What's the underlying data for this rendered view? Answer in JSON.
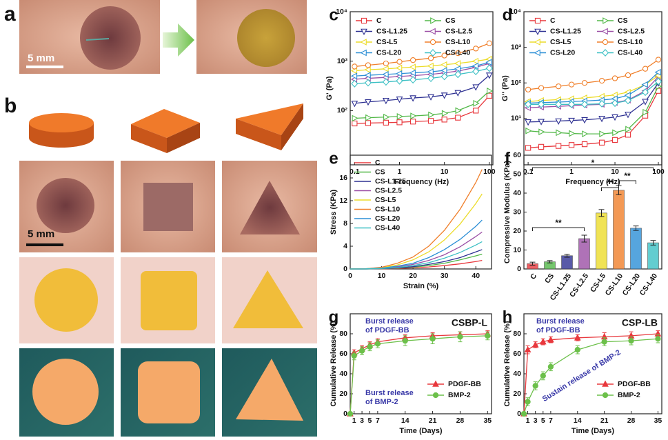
{
  "panel_a": {
    "label": "a",
    "scale_bar": "5 mm"
  },
  "panel_b": {
    "label": "b",
    "scale_bar": "5 mm"
  },
  "chart_data": [
    {
      "type": "line",
      "panel": "c",
      "x_label": "Frequency (Hz)",
      "y_label": "G' (Pa)",
      "xscale": "log",
      "yscale": "log",
      "xlim": [
        0.08,
        120
      ],
      "ylim": [
        8,
        10000
      ],
      "xticks": [
        0.1,
        1,
        10,
        100
      ],
      "yticks": [
        {
          "value": 100,
          "label": "10²"
        },
        {
          "value": 1000,
          "label": "10³"
        },
        {
          "value": 10000,
          "label": "10⁴"
        }
      ],
      "legend": "upper left",
      "markers_filled": false,
      "x": [
        0.1,
        0.2,
        0.5,
        1,
        2,
        5,
        10,
        20,
        50,
        100
      ],
      "series": [
        {
          "name": "C",
          "color": "#e8383d",
          "marker": "square",
          "values": [
            55,
            56,
            57,
            58,
            60,
            62,
            66,
            72,
            100,
            200
          ]
        },
        {
          "name": "CS",
          "color": "#52b848",
          "marker": "triangle-right",
          "values": [
            70,
            72,
            74,
            76,
            78,
            82,
            88,
            100,
            140,
            250
          ]
        },
        {
          "name": "CS-L1.25",
          "color": "#2e3192",
          "marker": "triangle-down",
          "values": [
            140,
            150,
            160,
            170,
            180,
            190,
            205,
            230,
            300,
            520
          ]
        },
        {
          "name": "CS-L2.5",
          "color": "#9b4fa5",
          "marker": "triangle-left",
          "values": [
            430,
            450,
            470,
            490,
            510,
            540,
            580,
            630,
            750,
            900
          ]
        },
        {
          "name": "CS-L5",
          "color": "#ecdc2a",
          "marker": "triangle-left",
          "values": [
            640,
            670,
            700,
            730,
            760,
            800,
            850,
            900,
            1000,
            1100
          ]
        },
        {
          "name": "CS-L10",
          "color": "#f07f2a",
          "marker": "circle",
          "values": [
            780,
            830,
            900,
            970,
            1050,
            1150,
            1300,
            1450,
            1800,
            2300
          ]
        },
        {
          "name": "CS-L20",
          "color": "#2c8fd6",
          "marker": "triangle-left",
          "values": [
            500,
            520,
            540,
            560,
            580,
            610,
            650,
            700,
            800,
            950
          ]
        },
        {
          "name": "CS-L40",
          "color": "#3cc0c4",
          "marker": "diamond",
          "values": [
            350,
            365,
            380,
            400,
            420,
            450,
            490,
            540,
            620,
            720
          ]
        }
      ]
    },
    {
      "type": "line",
      "panel": "d",
      "x_label": "Frequency (Hz)",
      "y_label": "G'' (Pa)",
      "xscale": "log",
      "yscale": "log",
      "xlim": [
        0.08,
        120
      ],
      "ylim": [
        0.5,
        10000
      ],
      "xticks": [
        0.1,
        1,
        10,
        100
      ],
      "yticks": [
        {
          "value": 10,
          "label": "10¹"
        },
        {
          "value": 100,
          "label": "10²"
        },
        {
          "value": 1000,
          "label": "10³"
        },
        {
          "value": 10000,
          "label": "10⁴"
        }
      ],
      "legend": "upper left",
      "markers_filled": false,
      "x": [
        0.1,
        0.2,
        0.5,
        1,
        2,
        5,
        10,
        20,
        50,
        100
      ],
      "series": [
        {
          "name": "C",
          "color": "#e8383d",
          "marker": "square",
          "values": [
            1.5,
            1.6,
            1.7,
            1.8,
            1.9,
            2.1,
            2.5,
            3.5,
            12,
            60
          ]
        },
        {
          "name": "CS",
          "color": "#52b848",
          "marker": "triangle-right",
          "values": [
            4.5,
            4.2,
            4,
            3.8,
            3.7,
            3.7,
            4,
            5,
            15,
            80
          ]
        },
        {
          "name": "CS-L1.25",
          "color": "#2e3192",
          "marker": "triangle-down",
          "values": [
            8,
            8.2,
            8.5,
            8.8,
            9.2,
            10,
            11,
            13,
            30,
            100
          ]
        },
        {
          "name": "CS-L2.5",
          "color": "#9b4fa5",
          "marker": "triangle-left",
          "values": [
            20,
            21,
            22,
            23,
            24,
            25,
            28,
            33,
            60,
            150
          ]
        },
        {
          "name": "CS-L5",
          "color": "#ecdc2a",
          "marker": "triangle-left",
          "values": [
            30,
            32,
            34,
            36,
            38,
            42,
            46,
            55,
            90,
            160
          ]
        },
        {
          "name": "CS-L10",
          "color": "#f07f2a",
          "marker": "circle",
          "values": [
            65,
            72,
            80,
            90,
            100,
            115,
            135,
            165,
            250,
            450
          ]
        },
        {
          "name": "CS-L20",
          "color": "#2c8fd6",
          "marker": "triangle-left",
          "values": [
            27,
            28,
            29,
            30,
            31,
            33,
            36,
            45,
            90,
            200
          ]
        },
        {
          "name": "CS-L40",
          "color": "#3cc0c4",
          "marker": "diamond",
          "values": [
            25,
            25,
            25,
            25,
            25,
            26,
            27,
            32,
            55,
            110
          ]
        }
      ]
    },
    {
      "type": "line",
      "panel": "e",
      "x_label": "Strain (%)",
      "y_label": "Stress (KPa)",
      "xlim": [
        0,
        45
      ],
      "ylim": [
        0,
        20
      ],
      "xticks": [
        0,
        10,
        20,
        30,
        40
      ],
      "yticks": [
        0,
        4,
        8,
        12,
        16
      ],
      "legend": "upper left",
      "x": [
        0,
        5,
        10,
        15,
        20,
        25,
        30,
        35,
        40,
        42
      ],
      "series": [
        {
          "name": "C",
          "color": "#e8383d",
          "values": [
            0,
            0,
            0.03,
            0.08,
            0.2,
            0.35,
            0.6,
            0.9,
            1.3,
            1.5
          ]
        },
        {
          "name": "CS",
          "color": "#52b848",
          "values": [
            0,
            0.01,
            0.05,
            0.14,
            0.3,
            0.6,
            1,
            1.6,
            2.3,
            2.6
          ]
        },
        {
          "name": "CS-L1.25",
          "color": "#2e3192",
          "values": [
            0,
            0.01,
            0.06,
            0.19,
            0.4,
            0.8,
            1.3,
            2,
            3,
            3.4
          ]
        },
        {
          "name": "CS-L2.5",
          "color": "#9b4fa5",
          "values": [
            0,
            0.02,
            0.12,
            0.36,
            0.8,
            1.5,
            2.5,
            3.9,
            5.7,
            6.5
          ]
        },
        {
          "name": "CS-L5",
          "color": "#ecdc2a",
          "values": [
            0,
            0.04,
            0.24,
            0.7,
            1.6,
            3,
            5.1,
            7.9,
            11.5,
            13.2
          ]
        },
        {
          "name": "CS-L10",
          "color": "#f07f2a",
          "values": [
            0,
            0.05,
            0.3,
            1,
            2.1,
            4,
            6.8,
            10.5,
            15.2,
            17.5
          ]
        },
        {
          "name": "CS-L20",
          "color": "#2c8fd6",
          "values": [
            0,
            0.03,
            0.15,
            0.5,
            1,
            2,
            3.4,
            5.2,
            7.5,
            8.6
          ]
        },
        {
          "name": "CS-L40",
          "color": "#3cc0c4",
          "values": [
            0,
            0.01,
            0.09,
            0.26,
            0.6,
            1.1,
            1.9,
            2.9,
            4.2,
            4.8
          ]
        }
      ]
    },
    {
      "type": "bar",
      "panel": "f",
      "y_label": "Compressive Modulus (KPa)",
      "ylim": [
        0,
        60
      ],
      "yticks": [
        0,
        10,
        20,
        30,
        40,
        50,
        60
      ],
      "categories": [
        "C",
        "CS",
        "CS-L1.25",
        "CS-L2.5",
        "CS-L5",
        "CS-L10",
        "CS-L20",
        "CS-L40"
      ],
      "values": [
        2.8,
        3.8,
        7,
        16,
        29.5,
        41.5,
        21.5,
        13.8
      ],
      "errors": [
        0.8,
        0.6,
        0.8,
        1.8,
        1.8,
        2.3,
        1.2,
        1.2
      ],
      "colors": [
        "#e8383d",
        "#52b848",
        "#2e3192",
        "#9b4fa5",
        "#ecdc2a",
        "#f07f2a",
        "#2c8fd6",
        "#3cc0c4"
      ],
      "annotations": [
        "**",
        "**",
        "**",
        "*"
      ]
    },
    {
      "type": "line",
      "panel": "g",
      "title": "CSBP-L",
      "x_label": "Time (Days)",
      "y_label": "Cumulative Release (%)",
      "xlim": [
        0,
        36
      ],
      "ylim": [
        0,
        100
      ],
      "xticks": [
        1,
        3,
        5,
        7,
        14,
        21,
        28,
        35
      ],
      "yticks": [
        0,
        20,
        40,
        60,
        80
      ],
      "legend": "lower right",
      "markers_filled": true,
      "x": [
        0,
        1,
        3,
        5,
        7,
        14,
        21,
        28,
        35
      ],
      "series": [
        {
          "name": "PDGF-BB",
          "color": "#e8383d",
          "marker": "triangle-up",
          "values": [
            0,
            61,
            65,
            69,
            72,
            76,
            78,
            79,
            80
          ],
          "errors": [
            0,
            3,
            3,
            3,
            3,
            3,
            3,
            3,
            3
          ]
        },
        {
          "name": "BMP-2",
          "color": "#6cc04a",
          "marker": "circle",
          "values": [
            0,
            58,
            63,
            67,
            70,
            73,
            75,
            77,
            78
          ],
          "errors": [
            0,
            4,
            4,
            4,
            4,
            5,
            5,
            5,
            4
          ]
        }
      ],
      "annotations": [
        [
          "Burst release",
          "of PDGF-BB"
        ],
        [
          "Burst release",
          "of BMP-2"
        ]
      ]
    },
    {
      "type": "line",
      "panel": "h",
      "title": "CSP-LB",
      "x_label": "Time (Days)",
      "y_label": "Cumulative Release (%)",
      "xlim": [
        0,
        36
      ],
      "ylim": [
        0,
        100
      ],
      "xticks": [
        1,
        3,
        5,
        7,
        14,
        21,
        28,
        35
      ],
      "yticks": [
        0,
        20,
        40,
        60,
        80
      ],
      "legend": "lower right",
      "markers_filled": true,
      "x": [
        0,
        1,
        3,
        5,
        7,
        14,
        21,
        28,
        35
      ],
      "series": [
        {
          "name": "PDGF-BB",
          "color": "#e8383d",
          "marker": "triangle-up",
          "values": [
            0,
            64,
            69,
            72,
            74,
            76,
            77,
            78,
            80
          ],
          "errors": [
            0,
            4,
            3,
            3,
            3,
            3,
            4,
            4,
            3
          ]
        },
        {
          "name": "BMP-2",
          "color": "#6cc04a",
          "marker": "circle",
          "values": [
            0,
            12,
            28,
            38,
            47,
            64,
            72,
            73,
            75
          ],
          "errors": [
            0,
            4,
            4,
            4,
            4,
            4,
            4,
            4,
            4
          ]
        }
      ],
      "annotations": [
        [
          "Burst release",
          "of PDGF-BB"
        ],
        [
          "Sustain release of BMP-2"
        ]
      ]
    }
  ]
}
